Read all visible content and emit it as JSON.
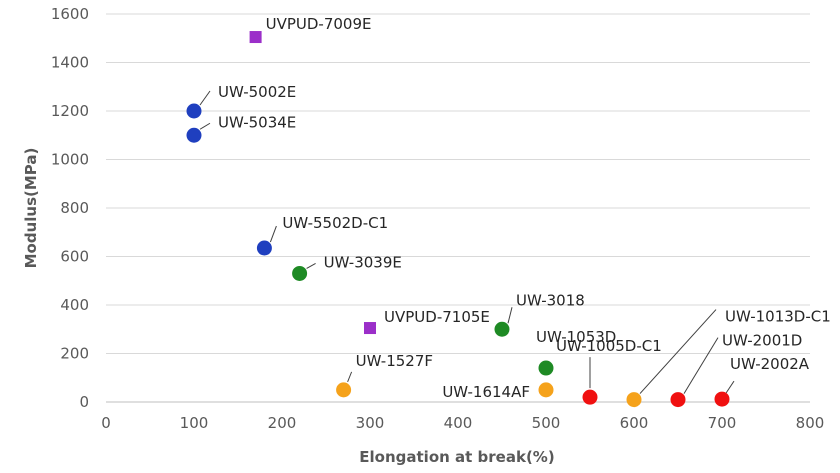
{
  "chart_data": {
    "type": "scatter",
    "title": "",
    "xlabel": "Elongation at break(%)",
    "ylabel": "Modulus(MPa)",
    "xlim": [
      0,
      800
    ],
    "ylim": [
      0,
      1600
    ],
    "x_ticks": [
      "0",
      "100",
      "200",
      "300",
      "400",
      "500",
      "600",
      "700",
      "800"
    ],
    "y_ticks": [
      "0",
      "200",
      "400",
      "600",
      "800",
      "1000",
      "1200",
      "1400",
      "1600"
    ],
    "grid": "horizontal",
    "legend": "none",
    "points": [
      {
        "label": "UVPUD-7009E",
        "x": 170,
        "y": 1505,
        "color": "#9B2FC9",
        "marker": "square"
      },
      {
        "label": "UW-5002E",
        "x": 100,
        "y": 1200,
        "color": "#1F3FBF",
        "marker": "circle"
      },
      {
        "label": "UW-5034E",
        "x": 100,
        "y": 1100,
        "color": "#1F3FBF",
        "marker": "circle"
      },
      {
        "label": "UW-5502D-C1",
        "x": 180,
        "y": 635,
        "color": "#1F3FBF",
        "marker": "circle"
      },
      {
        "label": "UW-3039E",
        "x": 220,
        "y": 530,
        "color": "#1E8A24",
        "marker": "circle"
      },
      {
        "label": "UVPUD-7105E",
        "x": 300,
        "y": 305,
        "color": "#9B2FC9",
        "marker": "square"
      },
      {
        "label": "UW-3018",
        "x": 450,
        "y": 300,
        "color": "#1E8A24",
        "marker": "circle"
      },
      {
        "label": "UW-1053D",
        "x": 500,
        "y": 140,
        "color": "#1E8A24",
        "marker": "circle"
      },
      {
        "label": "UW-1527F",
        "x": 270,
        "y": 50,
        "color": "#F5A21B",
        "marker": "circle"
      },
      {
        "label": "UW-1614AF",
        "x": 500,
        "y": 50,
        "color": "#F5A21B",
        "marker": "circle"
      },
      {
        "label": "UW-1005D-C1",
        "x": 550,
        "y": 20,
        "color": "#F01010",
        "marker": "circle"
      },
      {
        "label": "UW-1013D-C1",
        "x": 600,
        "y": 10,
        "color": "#F5A21B",
        "marker": "circle"
      },
      {
        "label": "UW-2001D",
        "x": 650,
        "y": 10,
        "color": "#F01010",
        "marker": "circle"
      },
      {
        "label": "UW-2002A",
        "x": 700,
        "y": 12,
        "color": "#F01010",
        "marker": "circle"
      }
    ]
  }
}
